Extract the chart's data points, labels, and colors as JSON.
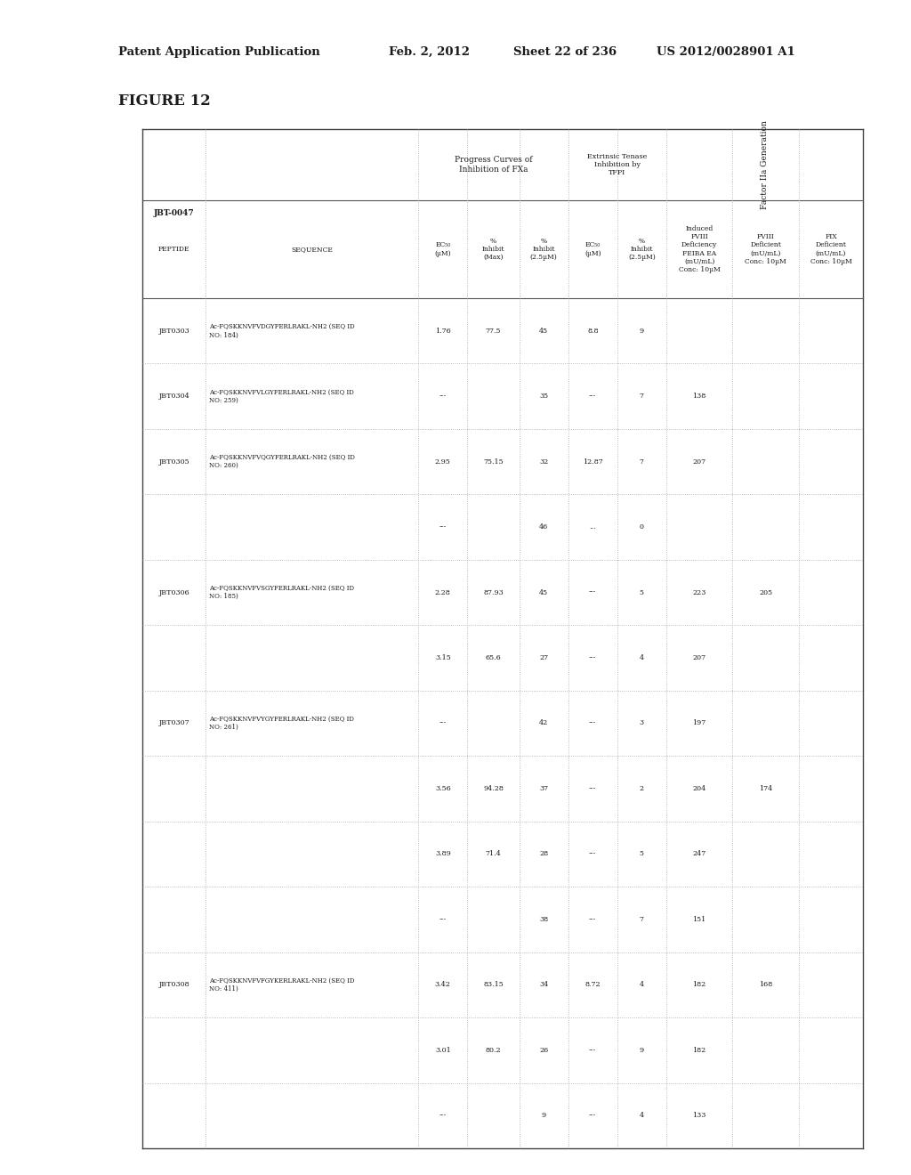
{
  "header_line1": "Patent Application Publication",
  "header_date": "Feb. 2, 2012",
  "header_sheet": "Sheet 22 of 236",
  "header_patent": "US 2012/0028901 A1",
  "figure_label": "FIGURE 12",
  "table_id": "JBT-0047",
  "rows": [
    {
      "peptide": "JBT0303",
      "sequence": "Ac-FQSKKNVFVDGYFERLRAKL-NH2 (SEQ ID\nNO: 184)",
      "ec50_fxa": "1.76",
      "pct_max_fxa": "77.5",
      "pct_25_fxa": "45",
      "ec50_tfpi": "8.8",
      "pct_25_tfpi": "9",
      "induced_fviii": "",
      "fviii_def": "",
      "fix_def": ""
    },
    {
      "peptide": "JBT0304",
      "sequence": "Ac-FQSKKNVFVLGYFERLRAKL-NH2 (SEQ ID\nNO: 259)",
      "ec50_fxa": "---",
      "pct_max_fxa": "",
      "pct_25_fxa": "35",
      "ec50_tfpi": "---",
      "pct_25_tfpi": "7",
      "induced_fviii": "138",
      "fviii_def": "",
      "fix_def": ""
    },
    {
      "peptide": "JBT0305",
      "sequence": "Ac-FQSKKNVFVQGYFERLRAKL-NH2 (SEQ ID\nNO: 260)",
      "ec50_fxa": "2.95",
      "pct_max_fxa": "75.15",
      "pct_25_fxa": "32",
      "ec50_tfpi": "12.87",
      "pct_25_tfpi": "7",
      "induced_fviii": "207",
      "fviii_def": "",
      "fix_def": ""
    },
    {
      "peptide": "",
      "sequence": "",
      "ec50_fxa": "---",
      "pct_max_fxa": "",
      "pct_25_fxa": "46",
      "ec50_tfpi": "...",
      "pct_25_tfpi": "0",
      "induced_fviii": "",
      "fviii_def": "",
      "fix_def": ""
    },
    {
      "peptide": "JBT0306",
      "sequence": "Ac-FQSKKNVFVSGYFERLRAKL-NH2 (SEQ ID\nNO: 185)",
      "ec50_fxa": "2.28",
      "pct_max_fxa": "87.93",
      "pct_25_fxa": "45",
      "ec50_tfpi": "---",
      "pct_25_tfpi": "5",
      "induced_fviii": "223",
      "fviii_def": "205",
      "fix_def": ""
    },
    {
      "peptide": "",
      "sequence": "",
      "ec50_fxa": "3.15",
      "pct_max_fxa": "65.6",
      "pct_25_fxa": "27",
      "ec50_tfpi": "---",
      "pct_25_tfpi": "4",
      "induced_fviii": "207",
      "fviii_def": "",
      "fix_def": ""
    },
    {
      "peptide": "JBT0307",
      "sequence": "Ac-FQSKKNVFVYGYFERLRAKL-NH2 (SEQ ID\nNO: 261)",
      "ec50_fxa": "---",
      "pct_max_fxa": "",
      "pct_25_fxa": "42",
      "ec50_tfpi": "---",
      "pct_25_tfpi": "3",
      "induced_fviii": "197",
      "fviii_def": "",
      "fix_def": ""
    },
    {
      "peptide": "",
      "sequence": "",
      "ec50_fxa": "3.56",
      "pct_max_fxa": "94.28",
      "pct_25_fxa": "37",
      "ec50_tfpi": "---",
      "pct_25_tfpi": "2",
      "induced_fviii": "204",
      "fviii_def": "174",
      "fix_def": ""
    },
    {
      "peptide": "",
      "sequence": "",
      "ec50_fxa": "3.89",
      "pct_max_fxa": "71.4",
      "pct_25_fxa": "28",
      "ec50_tfpi": "---",
      "pct_25_tfpi": "5",
      "induced_fviii": "247",
      "fviii_def": "",
      "fix_def": ""
    },
    {
      "peptide": "",
      "sequence": "",
      "ec50_fxa": "---",
      "pct_max_fxa": "",
      "pct_25_fxa": "38",
      "ec50_tfpi": "---",
      "pct_25_tfpi": "7",
      "induced_fviii": "151",
      "fviii_def": "",
      "fix_def": ""
    },
    {
      "peptide": "JBT0308",
      "sequence": "Ac-FQSKKNVFVFGYKERLRAKL-NH2 (SEQ ID\nNO: 411)",
      "ec50_fxa": "3.42",
      "pct_max_fxa": "83.15",
      "pct_25_fxa": "34",
      "ec50_tfpi": "8.72",
      "pct_25_tfpi": "4",
      "induced_fviii": "182",
      "fviii_def": "168",
      "fix_def": ""
    },
    {
      "peptide": "",
      "sequence": "",
      "ec50_fxa": "3.01",
      "pct_max_fxa": "80.2",
      "pct_25_fxa": "26",
      "ec50_tfpi": "---",
      "pct_25_tfpi": "9",
      "induced_fviii": "182",
      "fviii_def": "",
      "fix_def": ""
    },
    {
      "peptide": "",
      "sequence": "",
      "ec50_fxa": "---",
      "pct_max_fxa": "",
      "pct_25_fxa": "9",
      "ec50_tfpi": "---",
      "pct_25_tfpi": "4",
      "induced_fviii": "133",
      "fviii_def": "",
      "fix_def": ""
    }
  ],
  "bg_color": "#ffffff",
  "text_color": "#1a1a1a",
  "border_color": "#999999"
}
